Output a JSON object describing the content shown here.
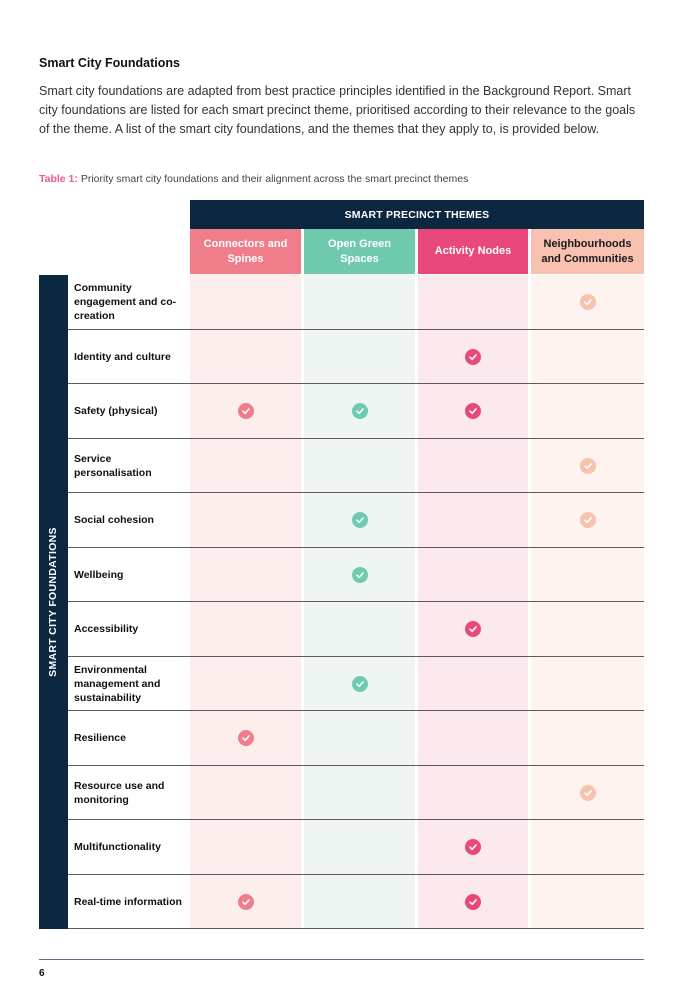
{
  "heading": "Smart City Foundations",
  "intro": "Smart city foundations are adapted from best practice principles identified in the Background Report. Smart city foundations are listed for each smart precinct theme, prioritised according to their relevance to the goals of the theme. A list of the smart city foundations, and the themes that they apply to, is provided below.",
  "caption": {
    "label": "Table 1:",
    "text": " Priority smart city foundations and their alignment across the smart precinct themes"
  },
  "table": {
    "band_title": "SMART PRECINCT THEMES",
    "sidebar_title": "SMART CITY FOUNDATIONS",
    "themes": [
      {
        "label": "Connectors and Spines",
        "color": "#f07e8a",
        "text_color": "#ffffff",
        "cell_color": "#fdeeed"
      },
      {
        "label": "Open Green Spaces",
        "color": "#6fcab0",
        "text_color": "#ffffff",
        "cell_color": "#eef5f2"
      },
      {
        "label": "Activity Nodes",
        "color": "#e9497a",
        "text_color": "#ffffff",
        "cell_color": "#fbe9ee"
      },
      {
        "label": "Neighbourhoods and Communities",
        "color": "#f8c1b0",
        "text_color": "#1a1a1a",
        "cell_color": "#fef3ef"
      }
    ],
    "rows": [
      {
        "label": "Community engagement and co-creation",
        "checks": [
          false,
          false,
          false,
          true
        ]
      },
      {
        "label": "Identity and culture",
        "checks": [
          false,
          false,
          true,
          false
        ]
      },
      {
        "label": "Safety (physical)",
        "checks": [
          true,
          true,
          true,
          false
        ]
      },
      {
        "label": "Service personalisation",
        "checks": [
          false,
          false,
          false,
          true
        ]
      },
      {
        "label": "Social cohesion",
        "checks": [
          false,
          true,
          false,
          true
        ]
      },
      {
        "label": "Wellbeing",
        "checks": [
          false,
          true,
          false,
          false
        ]
      },
      {
        "label": "Accessibility",
        "checks": [
          false,
          false,
          true,
          false
        ]
      },
      {
        "label": "Environmental management and sustainability",
        "checks": [
          false,
          true,
          false,
          false
        ]
      },
      {
        "label": "Resilience",
        "checks": [
          true,
          false,
          false,
          false
        ]
      },
      {
        "label": "Resource use and monitoring",
        "checks": [
          false,
          false,
          false,
          true
        ]
      },
      {
        "label": "Multifunctionality",
        "checks": [
          false,
          false,
          true,
          false
        ]
      },
      {
        "label": "Real-time information",
        "checks": [
          true,
          false,
          true,
          false
        ]
      }
    ]
  },
  "page_number": "6"
}
